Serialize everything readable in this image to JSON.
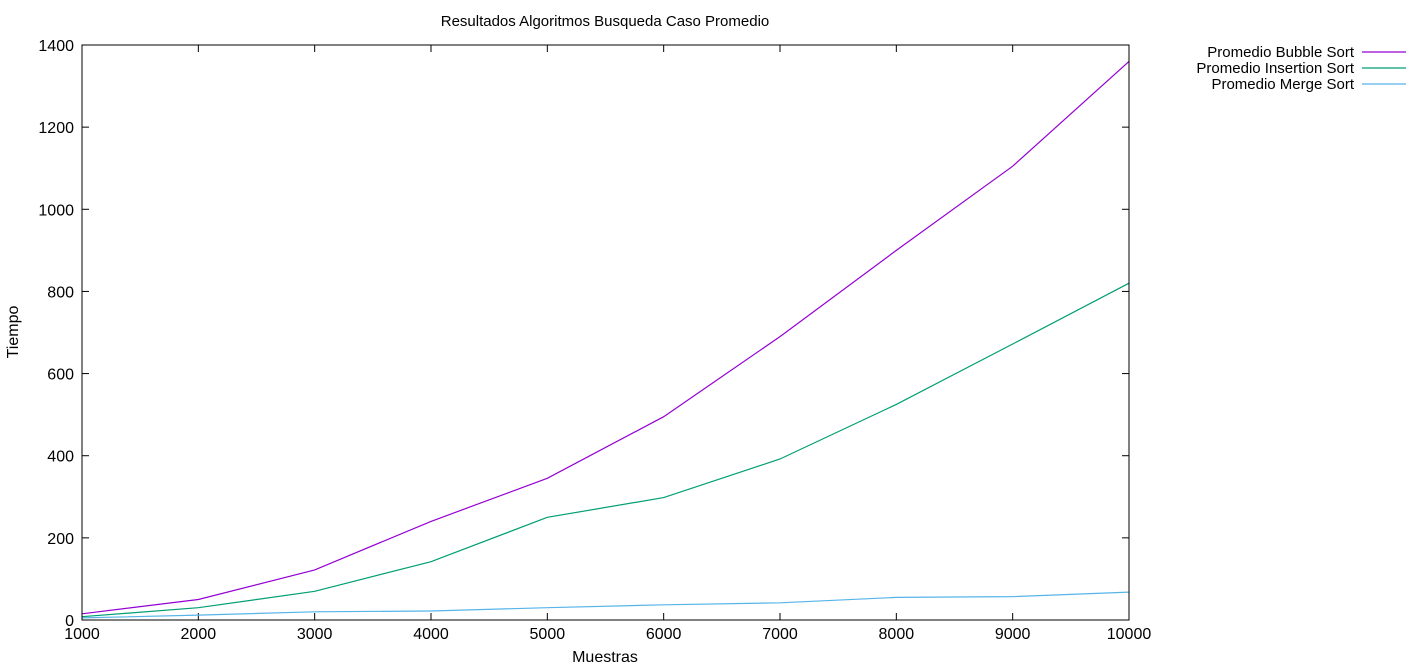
{
  "chart_data": {
    "type": "line",
    "title": "Resultados Algoritmos Busqueda Caso Promedio",
    "xlabel": "Muestras",
    "ylabel": "Tiempo",
    "xlim": [
      1000,
      10000
    ],
    "ylim": [
      0,
      1400
    ],
    "xticks": [
      1000,
      2000,
      3000,
      4000,
      5000,
      6000,
      7000,
      8000,
      9000,
      10000
    ],
    "yticks": [
      0,
      200,
      400,
      600,
      800,
      1000,
      1200,
      1400
    ],
    "grid": false,
    "legend_position": "outside-top-right",
    "x": [
      1000,
      2000,
      3000,
      4000,
      5000,
      6000,
      7000,
      8000,
      9000,
      10000
    ],
    "series": [
      {
        "name": "Promedio Bubble Sort",
        "color": "#9400d3",
        "values": [
          15,
          50,
          122,
          240,
          345,
          495,
          690,
          900,
          1105,
          1360
        ]
      },
      {
        "name": "Promedio Insertion Sort",
        "color": "#009e73",
        "values": [
          8,
          30,
          70,
          142,
          250,
          298,
          392,
          525,
          672,
          820
        ]
      },
      {
        "name": "Promedio Merge Sort",
        "color": "#56b4e9",
        "values": [
          5,
          12,
          20,
          22,
          30,
          37,
          42,
          55,
          57,
          68
        ]
      }
    ]
  }
}
